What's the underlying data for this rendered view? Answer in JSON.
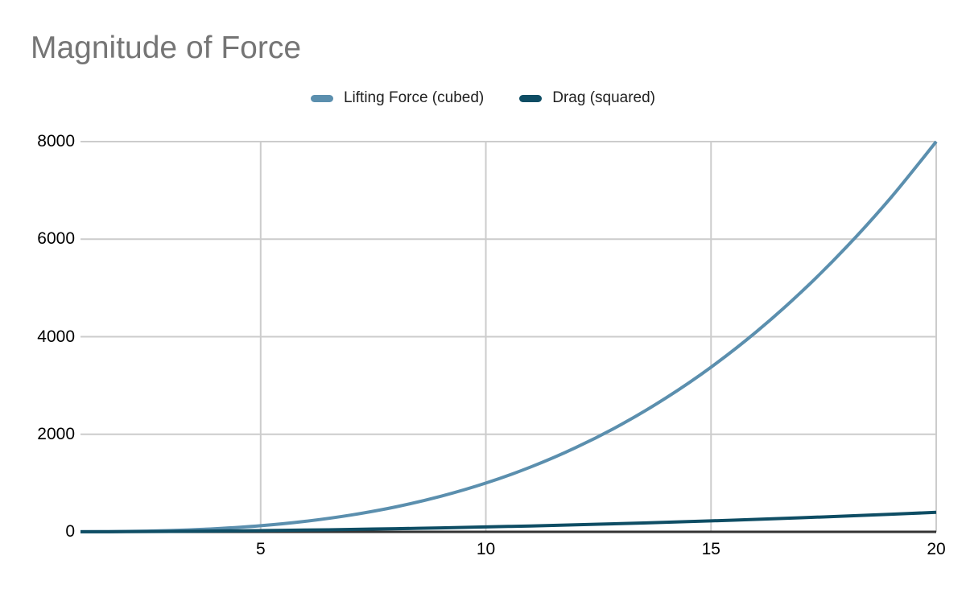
{
  "title": {
    "text": "Magnitude of Force",
    "color": "#757575"
  },
  "legend": {
    "position": "top",
    "text_color": "#212121",
    "items": [
      {
        "label": "Lifting Force (cubed)",
        "color": "#5b8fae"
      },
      {
        "label": "Drag (squared)",
        "color": "#0e4d64"
      }
    ]
  },
  "chart_data": {
    "type": "line",
    "title": "Magnitude of Force",
    "x": [
      1,
      2,
      3,
      4,
      5,
      6,
      7,
      8,
      9,
      10,
      11,
      12,
      13,
      14,
      15,
      16,
      17,
      18,
      19,
      20
    ],
    "series": [
      {
        "name": "Lifting Force (cubed)",
        "color": "#5b8fae",
        "values": [
          1,
          8,
          27,
          64,
          125,
          216,
          343,
          512,
          729,
          1000,
          1331,
          1728,
          2197,
          2744,
          3375,
          4096,
          4913,
          5832,
          6859,
          8000
        ]
      },
      {
        "name": "Drag (squared)",
        "color": "#0e4d64",
        "values": [
          1,
          4,
          9,
          16,
          25,
          36,
          49,
          64,
          81,
          100,
          121,
          144,
          169,
          196,
          225,
          256,
          289,
          324,
          361,
          400
        ]
      }
    ],
    "xlim": [
      1,
      20
    ],
    "ylim": [
      0,
      8000
    ],
    "x_ticks": [
      5,
      10,
      15,
      20
    ],
    "y_ticks": [
      0,
      2000,
      4000,
      6000,
      8000
    ],
    "grid": true,
    "smooth": true,
    "markers": false,
    "legend_position": "top",
    "colors": {
      "grid": "#cccccc",
      "axis": "#333333",
      "tick_text": "#000000"
    }
  }
}
